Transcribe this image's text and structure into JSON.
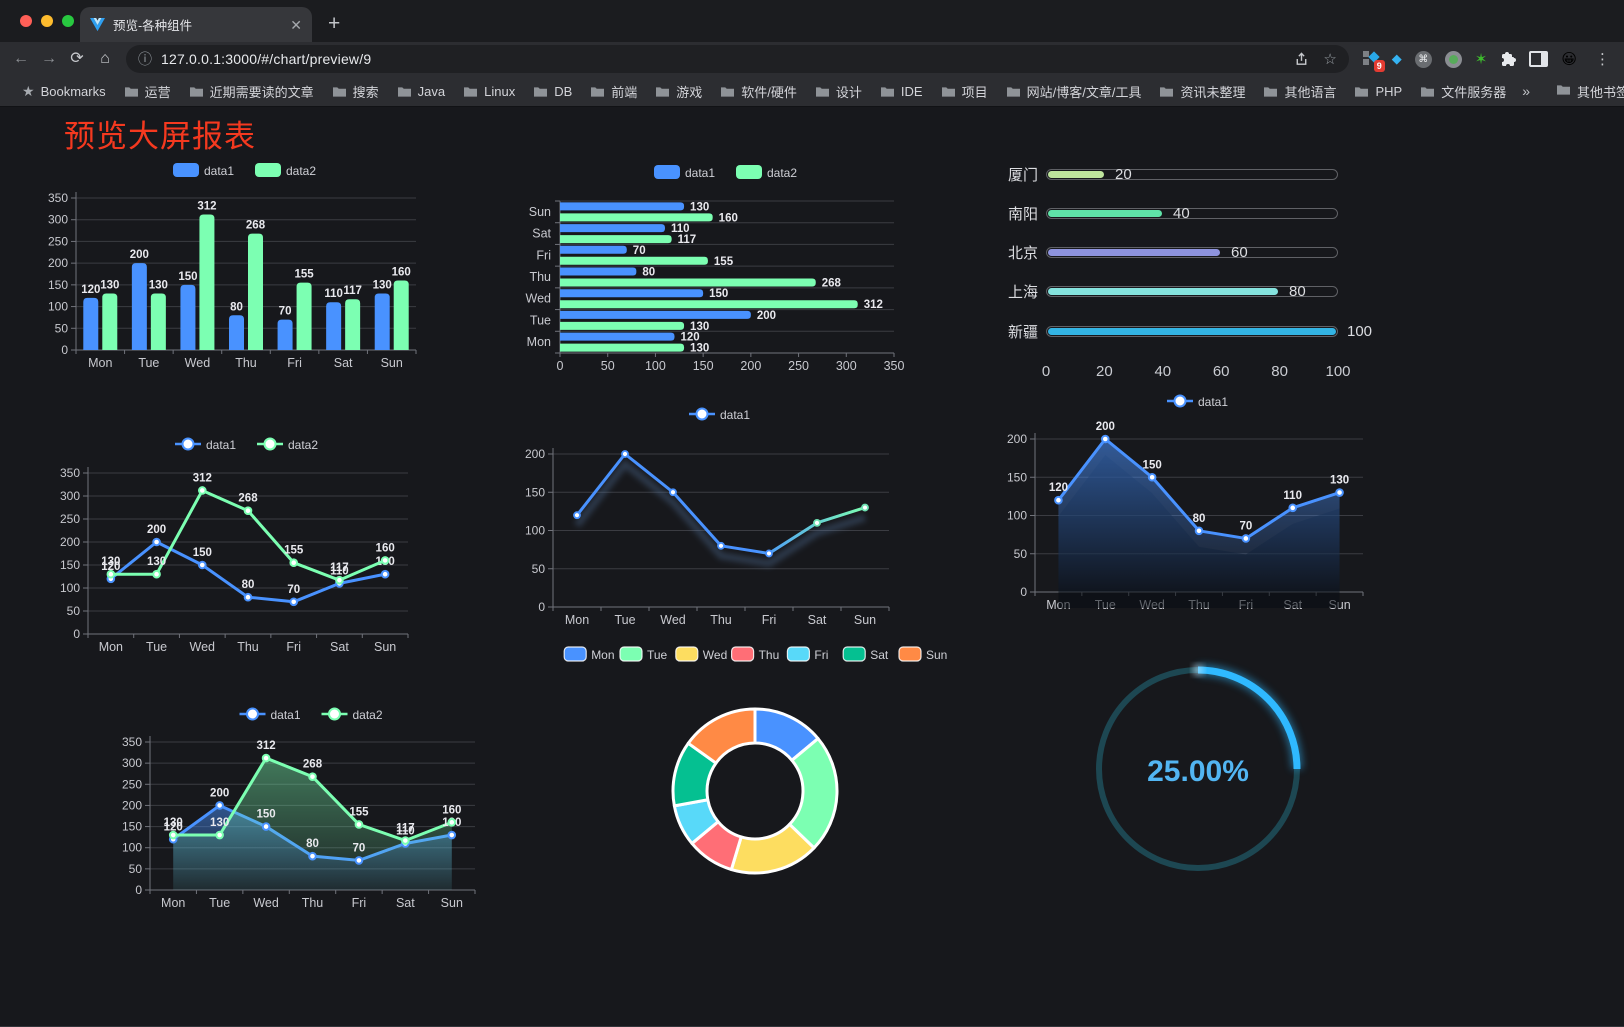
{
  "browser": {
    "tab": {
      "title": "预览-各种组件"
    },
    "url": "127.0.0.1:3000/#/chart/preview/9",
    "extension_badge": "9",
    "bookmarks_label": "Bookmarks",
    "bookmarks": [
      "运营",
      "近期需要读的文章",
      "搜索",
      "Java",
      "Linux",
      "DB",
      "前端",
      "游戏",
      "软件/硬件",
      "设计",
      "IDE",
      "项目",
      "网站/博客/文章/工具",
      "资讯未整理",
      "其他语言",
      "PHP",
      "文件服务器"
    ],
    "overflow_chevron": "»",
    "other_bookmarks": "其他书签"
  },
  "page": {
    "title": "预览大屏报表",
    "title_color": "#f5391f",
    "background": "#17181c"
  },
  "palette": {
    "blue": "#4992ff",
    "green": "#7cffb2",
    "yellow": "#fddd60",
    "red": "#ff6e76",
    "lightblue": "#58d9f9",
    "teal": "#05c091",
    "orange": "#ff8a45",
    "axis_text": "#c8c9cf",
    "grid": "#3b3c42",
    "axis": "#71737b",
    "value_label": "#e9e9ee"
  },
  "chart_data": [
    {
      "id": "bar-vertical",
      "type": "bar",
      "orientation": "vertical",
      "categories": [
        "Mon",
        "Tue",
        "Wed",
        "Thu",
        "Fri",
        "Sat",
        "Sun"
      ],
      "series": [
        {
          "name": "data1",
          "color": "#4992ff",
          "values": [
            120,
            200,
            150,
            80,
            70,
            110,
            130
          ]
        },
        {
          "name": "data2",
          "color": "#7cffb2",
          "values": [
            130,
            130,
            312,
            268,
            155,
            117,
            160
          ]
        }
      ],
      "ylim": [
        0,
        350
      ],
      "ytick": 50,
      "legend_position": "top",
      "grid": true
    },
    {
      "id": "bar-horizontal",
      "type": "bar",
      "orientation": "horizontal",
      "categories_bottom_to_top": [
        "Mon",
        "Tue",
        "Wed",
        "Thu",
        "Fri",
        "Sat",
        "Sun"
      ],
      "series": [
        {
          "name": "data1",
          "color": "#4992ff",
          "values": [
            120,
            200,
            150,
            80,
            70,
            110,
            130
          ]
        },
        {
          "name": "data2",
          "color": "#7cffb2",
          "values": [
            130,
            130,
            312,
            268,
            155,
            117,
            160
          ]
        }
      ],
      "xlim": [
        0,
        350
      ],
      "xtick": 50,
      "legend_position": "top",
      "grid": true
    },
    {
      "id": "progress-list",
      "type": "bar",
      "style": "progress",
      "items": [
        {
          "label": "厦门",
          "value": 20,
          "color": "#bee49c"
        },
        {
          "label": "南阳",
          "value": 40,
          "color": "#5fe3a8"
        },
        {
          "label": "北京",
          "value": 60,
          "color": "#8e93de"
        },
        {
          "label": "上海",
          "value": 80,
          "color": "#85e3de"
        },
        {
          "label": "新疆",
          "value": 100,
          "color": "#33b4e4"
        }
      ],
      "xlim": [
        0,
        100
      ],
      "xticks": [
        0,
        20,
        40,
        60,
        80,
        100
      ]
    },
    {
      "id": "line-two-series",
      "type": "line",
      "categories": [
        "Mon",
        "Tue",
        "Wed",
        "Thu",
        "Fri",
        "Sat",
        "Sun"
      ],
      "series": [
        {
          "name": "data1",
          "color": "#4992ff",
          "values": [
            120,
            200,
            150,
            80,
            70,
            110,
            130
          ]
        },
        {
          "name": "data2",
          "color": "#7cffb2",
          "values": [
            130,
            130,
            312,
            268,
            155,
            117,
            160
          ]
        }
      ],
      "ylim": [
        0,
        350
      ],
      "ytick": 50,
      "show_labels": true,
      "legend_position": "top"
    },
    {
      "id": "line-gradient-shadow",
      "type": "line",
      "categories": [
        "Mon",
        "Tue",
        "Wed",
        "Thu",
        "Fri",
        "Sat",
        "Sun"
      ],
      "series": [
        {
          "name": "data1",
          "gradient": [
            "#4992ff",
            "#7cffb2"
          ],
          "values": [
            120,
            200,
            150,
            80,
            70,
            110,
            130
          ]
        }
      ],
      "ylim": [
        0,
        200
      ],
      "ytick": 50,
      "show_labels": false,
      "shadow": true,
      "legend_position": "top"
    },
    {
      "id": "line-area-single",
      "type": "area",
      "categories": [
        "Mon",
        "Tue",
        "Wed",
        "Thu",
        "Fri",
        "Sat",
        "Sun"
      ],
      "series": [
        {
          "name": "data1",
          "color": "#4992ff",
          "values": [
            120,
            200,
            150,
            80,
            70,
            110,
            130
          ]
        }
      ],
      "ylim": [
        0,
        200
      ],
      "ytick": 50,
      "show_labels": true,
      "legend_position": "top"
    },
    {
      "id": "area-two-series",
      "type": "area",
      "categories": [
        "Mon",
        "Tue",
        "Wed",
        "Thu",
        "Fri",
        "Sat",
        "Sun"
      ],
      "series": [
        {
          "name": "data1",
          "color": "#4992ff",
          "values": [
            120,
            200,
            150,
            80,
            70,
            110,
            130
          ]
        },
        {
          "name": "data2",
          "color": "#7cffb2",
          "values": [
            130,
            130,
            312,
            268,
            155,
            117,
            160
          ]
        }
      ],
      "ylim": [
        0,
        350
      ],
      "ytick": 50,
      "show_labels": true,
      "legend_position": "top"
    },
    {
      "id": "donut",
      "type": "pie",
      "inner_radius_ratio": 0.58,
      "labels": [
        "Mon",
        "Tue",
        "Wed",
        "Thu",
        "Fri",
        "Sat",
        "Sun"
      ],
      "values": [
        120,
        200,
        150,
        80,
        70,
        110,
        130
      ],
      "colors": [
        "#4992ff",
        "#7cffb2",
        "#fddd60",
        "#ff6e76",
        "#58d9f9",
        "#05c091",
        "#ff8a45"
      ],
      "legend_position": "top"
    },
    {
      "id": "gauge",
      "type": "gauge",
      "value": 25,
      "max": 100,
      "display": "25.00%",
      "arc_color": "#2fb9ff",
      "track_color": "#1d4752",
      "text_color": "#52b5f2"
    }
  ]
}
